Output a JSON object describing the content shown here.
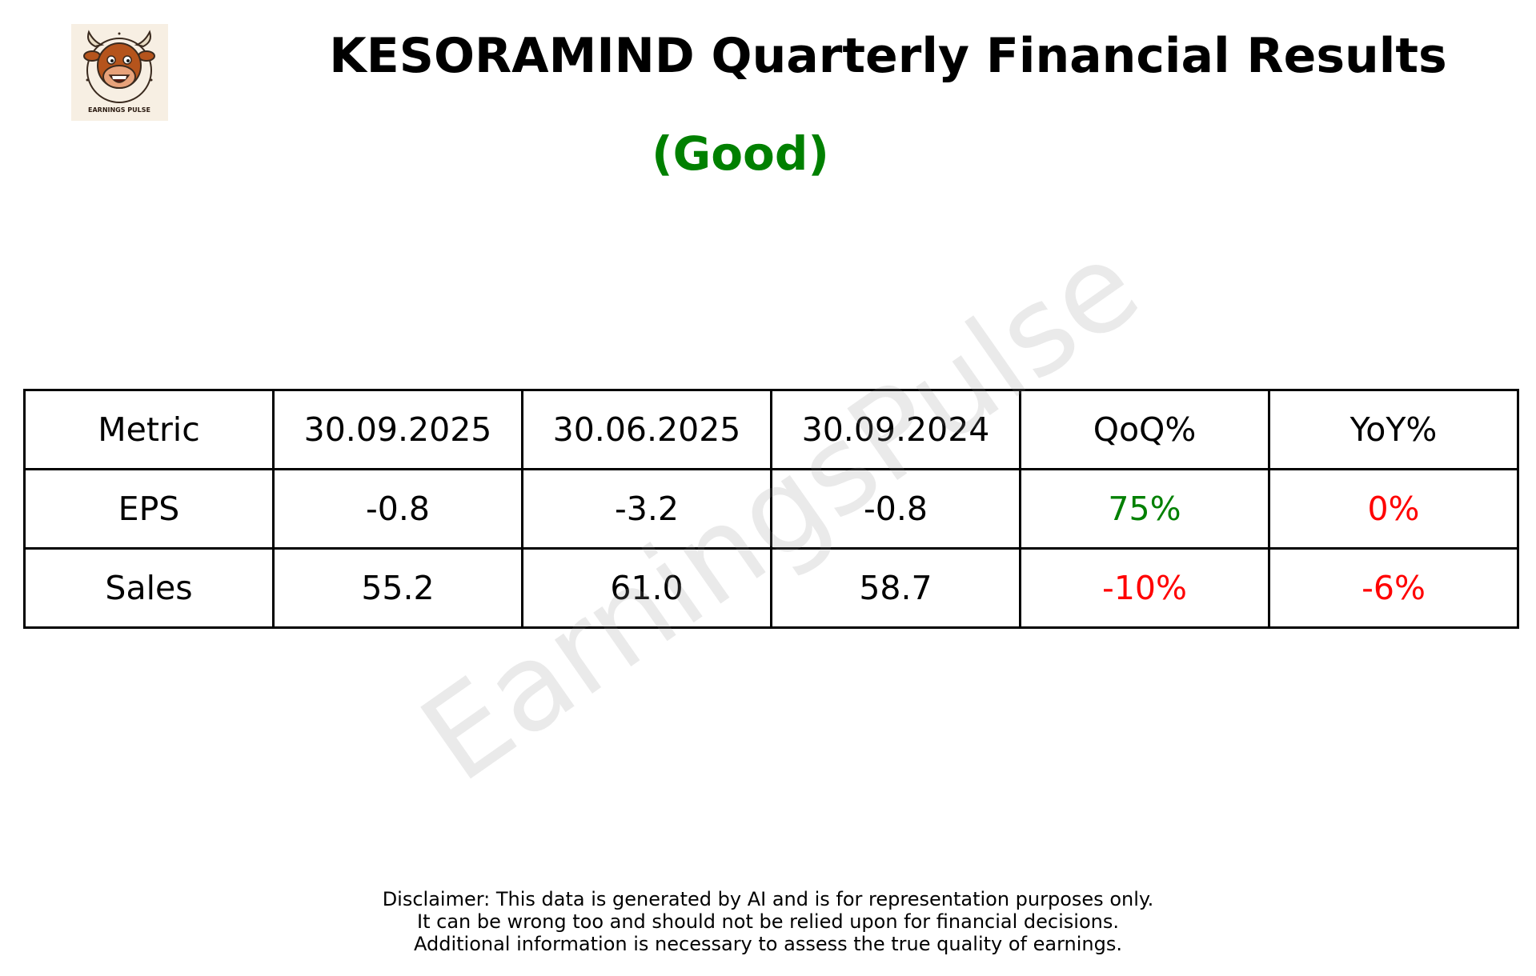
{
  "header": {
    "title": "KESORAMIND Quarterly Financial Results",
    "rating": "(Good)",
    "rating_color": "#008000"
  },
  "logo": {
    "icon": "bull-mascot-icon",
    "text": "EARNINGS PULSE"
  },
  "watermark": "EarningsPulse",
  "table": {
    "headers": [
      "Metric",
      "30.09.2025",
      "30.06.2025",
      "30.09.2024",
      "QoQ%",
      "YoY%"
    ],
    "rows": [
      {
        "metric": "EPS",
        "values": [
          "-0.8",
          "-3.2",
          "-0.8"
        ],
        "qoq": "75%",
        "qoq_color": "#008000",
        "yoy": "0%",
        "yoy_color": "#ff0000"
      },
      {
        "metric": "Sales",
        "values": [
          "55.2",
          "61.0",
          "58.7"
        ],
        "qoq": "-10%",
        "qoq_color": "#ff0000",
        "yoy": "-6%",
        "yoy_color": "#ff0000"
      }
    ]
  },
  "disclaimer": [
    "Disclaimer: This data is generated by AI and is for representation purposes only.",
    "It can be wrong too and should not be relied upon for financial decisions.",
    "Additional information is necessary to assess the true quality of earnings."
  ]
}
